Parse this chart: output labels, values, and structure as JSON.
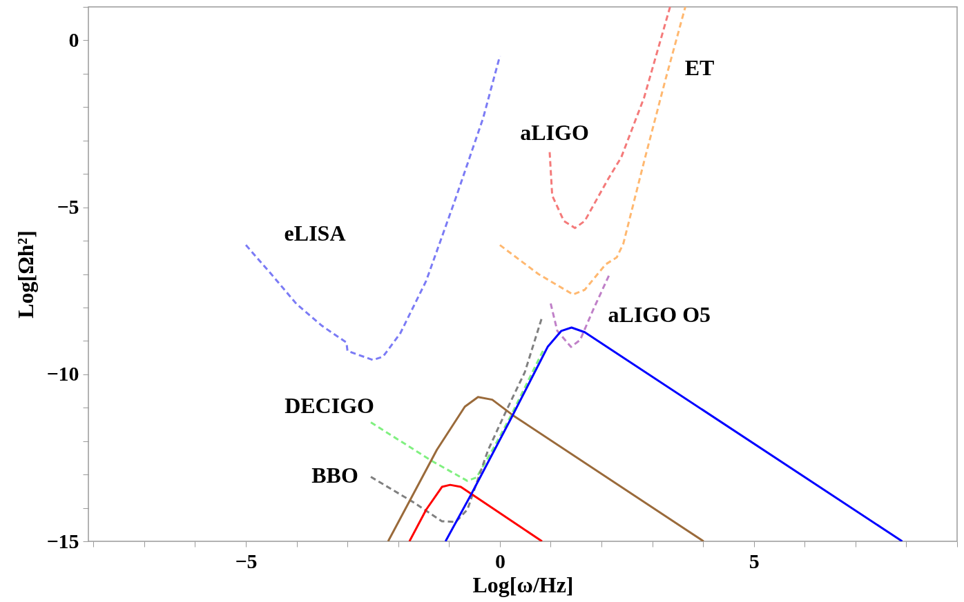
{
  "chart_data": {
    "type": "line",
    "xlabel": "Log[ω/Hz]",
    "ylabel": "Log[Ωh²]",
    "xlim": [
      -8.1,
      9
    ],
    "ylim": [
      -15,
      1
    ],
    "xticks": [
      {
        "value": -8,
        "label": null
      },
      {
        "value": -7,
        "label": null
      },
      {
        "value": -6,
        "label": null
      },
      -5,
      {
        "value": -4,
        "label": null
      },
      {
        "value": -3,
        "label": null
      },
      {
        "value": -2,
        "label": null
      },
      {
        "value": -1,
        "label": null
      },
      0,
      {
        "value": 1,
        "label": null
      },
      {
        "value": 2,
        "label": null
      },
      {
        "value": 3,
        "label": null
      },
      {
        "value": 4,
        "label": null
      },
      5,
      {
        "value": 6,
        "label": null
      },
      {
        "value": 7,
        "label": null
      },
      {
        "value": 8,
        "label": null
      },
      {
        "value": 9,
        "label": null
      }
    ],
    "yticks": [
      -15,
      {
        "value": -14,
        "label": null
      },
      {
        "value": -13,
        "label": null
      },
      {
        "value": -12,
        "label": null
      },
      {
        "value": -11,
        "label": null
      },
      -10,
      {
        "value": -9,
        "label": null
      },
      {
        "value": -8,
        "label": null
      },
      {
        "value": -7,
        "label": null
      },
      {
        "value": -6,
        "label": null
      },
      -5,
      {
        "value": -4,
        "label": null
      },
      {
        "value": -3,
        "label": null
      },
      {
        "value": -2,
        "label": null
      },
      {
        "value": -1,
        "label": null
      },
      0,
      {
        "value": 1,
        "label": null
      }
    ],
    "grid": false,
    "series": [
      {
        "name": "eLISA",
        "color": "#7b7bf5",
        "line_style": "dashed",
        "x": [
          -5,
          -4.5,
          -4,
          -3.5,
          -3.02,
          -3,
          -2.5,
          -2.3,
          -1.96,
          -1.45,
          -0.87,
          -0.33,
          0
        ],
        "values": [
          -6.13,
          -7,
          -7.9,
          -8.55,
          -9.05,
          -9.3,
          -9.57,
          -9.47,
          -8.77,
          -7.2,
          -4.73,
          -2.33,
          -0.47
        ]
      },
      {
        "name": "aLIGO",
        "color": "#f47a7a",
        "line_style": "dashed",
        "x": [
          0.98,
          1.03,
          1.26,
          1.48,
          1.67,
          2.12,
          2.39,
          2.84,
          3.35
        ],
        "values": [
          -3.35,
          -4.65,
          -5.41,
          -5.62,
          -5.41,
          -4.18,
          -3.5,
          -1.71,
          1
        ]
      },
      {
        "name": "ET",
        "color": "#ffb870",
        "line_style": "dashed",
        "x": [
          0,
          0.76,
          1.44,
          1.67,
          2.08,
          2.3,
          2.43,
          2.84,
          3.25,
          3.65
        ],
        "values": [
          -6.13,
          -7,
          -7.61,
          -7.47,
          -6.71,
          -6.5,
          -6.09,
          -3.62,
          -1.23,
          1
        ]
      },
      {
        "name": "aLIGO O5",
        "color": "#c080c8",
        "line_style": "dashed",
        "x": [
          1,
          1.13,
          1.4,
          1.58,
          1.85,
          2.16
        ],
        "values": [
          -7.88,
          -8.7,
          -9.18,
          -8.97,
          -8.02,
          -7
        ]
      },
      {
        "name": "DECIGO",
        "color": "#80f080",
        "line_style": "dashed",
        "x": [
          -2.54,
          -1.32,
          -0.64,
          -0.46,
          -0.1,
          0.22,
          0.86
        ],
        "values": [
          -11.44,
          -12.61,
          -13.19,
          -13.09,
          -12.14,
          -11.23,
          -9.26
        ]
      },
      {
        "name": "BBO",
        "color": "#808080",
        "line_style": "dashed",
        "x": [
          -2.54,
          -1.68,
          -1.14,
          -0.87,
          -0.64,
          -0.23,
          0.12,
          0.49,
          0.83
        ],
        "values": [
          -13.07,
          -13.85,
          -14.4,
          -14.42,
          -14.05,
          -12.26,
          -11.11,
          -9.94,
          -8.29
        ]
      },
      {
        "color": "#9a6a3a",
        "line_style": "solid",
        "x": [
          -2.2,
          -1.24,
          -0.69,
          -0.43,
          -0.15,
          0.26,
          4.01
        ],
        "values": [
          -15,
          -12.26,
          -10.97,
          -10.68,
          -10.76,
          -11.23,
          -15
        ]
      },
      {
        "color": "#ff0000",
        "line_style": "solid",
        "x": [
          -1.78,
          -1.45,
          -1.14,
          -0.98,
          -0.77,
          0.83
        ],
        "values": [
          -15,
          -14.05,
          -13.37,
          -13.31,
          -13.37,
          -15
        ]
      },
      {
        "color": "#0000ff",
        "line_style": "solid",
        "x": [
          -1.07,
          -0.56,
          0.22,
          0.94,
          1.21,
          1.41,
          1.67,
          7.92
        ],
        "values": [
          -15,
          -13.58,
          -11.32,
          -9.18,
          -8.7,
          -8.6,
          -8.74,
          -15
        ]
      }
    ]
  }
}
